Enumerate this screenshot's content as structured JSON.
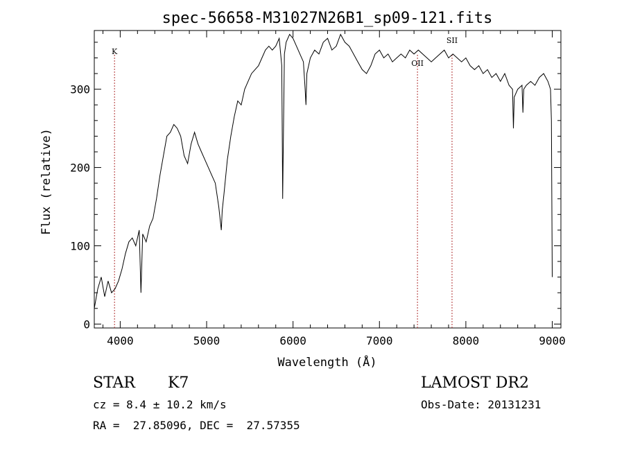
{
  "chart_data": {
    "type": "line",
    "title": "spec-56658-M31027N26B1_sp09-121.fits",
    "xlabel": "Wavelength (Å)",
    "ylabel": "Flux (relative)",
    "xlim": [
      3700,
      9100
    ],
    "ylim": [
      -5,
      375
    ],
    "xticks": [
      4000,
      5000,
      6000,
      7000,
      8000,
      9000
    ],
    "yticks": [
      0,
      100,
      200,
      300
    ],
    "grid": false,
    "series": [
      {
        "x": [
          3700,
          3740,
          3780,
          3820,
          3860,
          3900,
          3940,
          3980,
          4020,
          4060,
          4100,
          4140,
          4180,
          4220,
          4240,
          4260,
          4300,
          4340,
          4380,
          4420,
          4460,
          4500,
          4540,
          4580,
          4620,
          4660,
          4700,
          4740,
          4780,
          4820,
          4860,
          4900,
          4940,
          4980,
          5020,
          5060,
          5100,
          5140,
          5170,
          5180,
          5200,
          5240,
          5280,
          5320,
          5360,
          5400,
          5440,
          5480,
          5520,
          5560,
          5600,
          5640,
          5680,
          5720,
          5760,
          5800,
          5840,
          5870,
          5880,
          5890,
          5900,
          5920,
          5960,
          6000,
          6040,
          6080,
          6120,
          6140,
          6150,
          6160,
          6200,
          6250,
          6300,
          6350,
          6400,
          6450,
          6500,
          6550,
          6600,
          6650,
          6700,
          6750,
          6800,
          6850,
          6900,
          6950,
          7000,
          7050,
          7100,
          7150,
          7200,
          7250,
          7300,
          7350,
          7400,
          7450,
          7500,
          7550,
          7600,
          7650,
          7700,
          7750,
          7800,
          7850,
          7900,
          7950,
          8000,
          8050,
          8100,
          8150,
          8200,
          8250,
          8300,
          8350,
          8400,
          8450,
          8500,
          8540,
          8550,
          8560,
          8600,
          8650,
          8660,
          8670,
          8700,
          8750,
          8800,
          8850,
          8900,
          8950,
          8980,
          8990,
          9000
        ],
        "values": [
          20,
          45,
          60,
          35,
          55,
          40,
          45,
          55,
          70,
          90,
          105,
          110,
          100,
          120,
          40,
          115,
          105,
          125,
          135,
          160,
          190,
          215,
          240,
          245,
          255,
          250,
          240,
          215,
          205,
          230,
          245,
          230,
          220,
          210,
          200,
          190,
          180,
          150,
          120,
          145,
          165,
          210,
          240,
          265,
          285,
          280,
          300,
          310,
          320,
          325,
          330,
          340,
          350,
          355,
          350,
          355,
          365,
          330,
          160,
          250,
          345,
          360,
          370,
          365,
          355,
          345,
          335,
          300,
          280,
          320,
          340,
          350,
          345,
          360,
          365,
          350,
          355,
          370,
          360,
          355,
          345,
          335,
          325,
          320,
          330,
          345,
          350,
          340,
          345,
          335,
          340,
          345,
          340,
          350,
          345,
          350,
          345,
          340,
          335,
          340,
          345,
          350,
          340,
          345,
          340,
          335,
          340,
          330,
          325,
          330,
          320,
          325,
          315,
          320,
          310,
          320,
          305,
          300,
          250,
          290,
          300,
          305,
          270,
          300,
          305,
          310,
          305,
          315,
          320,
          310,
          300,
          260,
          60
        ]
      }
    ],
    "annotations": [
      {
        "label": "K",
        "x": 3934
      },
      {
        "label": "OII",
        "x": 7440
      },
      {
        "label": "SII",
        "x": 7840
      }
    ]
  },
  "info": {
    "object_type": "STAR",
    "subclass": "K7",
    "survey": "LAMOST DR2",
    "redshift": "cz = 8.4 ± 10.2 km/s",
    "obs_date": "Obs-Date: 20131231",
    "coordinates": "RA =  27.85096, DEC =  27.57355"
  }
}
